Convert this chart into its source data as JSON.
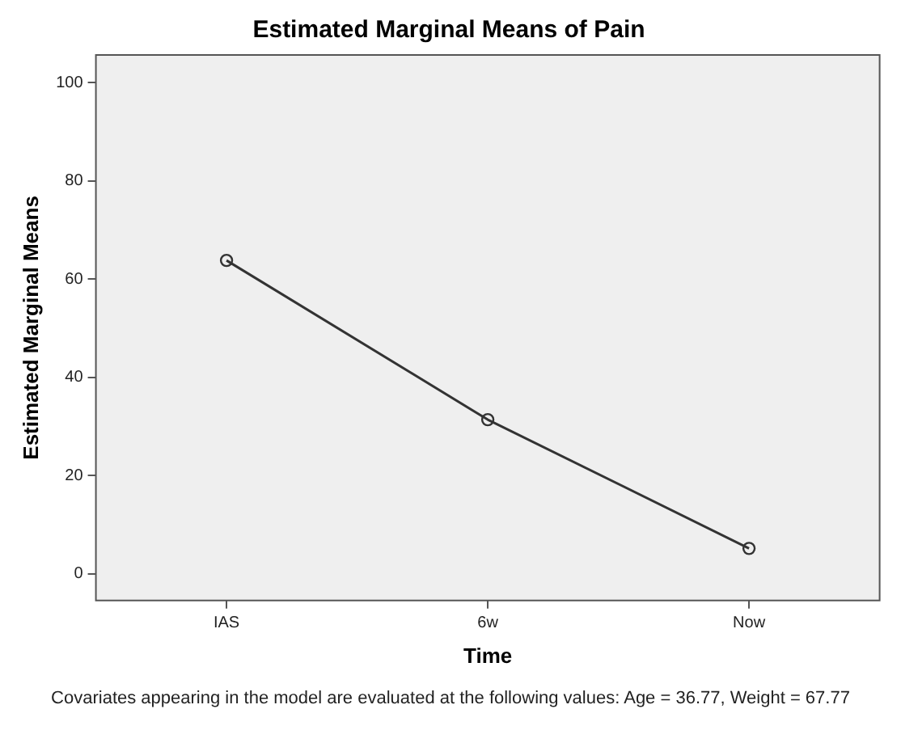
{
  "chart_data": {
    "type": "line",
    "title": "Estimated Marginal Means of Pain",
    "xlabel": "Time",
    "ylabel": "Estimated Marginal Means",
    "categories": [
      "IAS",
      "6w",
      "Now"
    ],
    "series": [
      {
        "color": "#333333",
        "values": [
          63.8,
          31.4,
          5.2
        ]
      }
    ],
    "ylim": [
      -5.4,
      105.6
    ],
    "yticks": [
      0,
      20,
      40,
      60,
      80,
      100
    ],
    "grid": false,
    "legend": false,
    "marker": "circle",
    "line_style": "solid",
    "annotations": [
      "Covariates appearing in the model are evaluated at the following values: Age = 36.77, Weight = 67.77"
    ]
  }
}
